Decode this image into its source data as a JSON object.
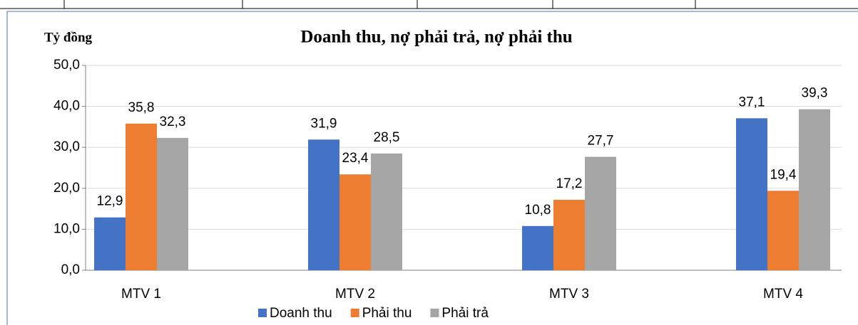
{
  "chart_data": {
    "type": "bar",
    "title": "Doanh thu, nợ phải trả, nợ phải thu",
    "y_label": "Tỷ đồng",
    "categories": [
      "MTV 1",
      "MTV 2",
      "MTV 3",
      "MTV 4"
    ],
    "series": [
      {
        "name": "Doanh thu",
        "color": "#4472c4",
        "values": [
          12.9,
          31.9,
          10.8,
          37.1
        ],
        "value_labels": [
          "12,9",
          "31,9",
          "10,8",
          "37,1"
        ]
      },
      {
        "name": "Phải thu",
        "color": "#ed7d31",
        "values": [
          35.8,
          23.4,
          17.2,
          19.4
        ],
        "value_labels": [
          "35,8",
          "23,4",
          "17,2",
          "19,4"
        ]
      },
      {
        "name": "Phải trả",
        "color": "#a5a5a5",
        "values": [
          32.3,
          28.5,
          27.7,
          39.3
        ],
        "value_labels": [
          "32,3",
          "28,5",
          "27,7",
          "39,3"
        ]
      }
    ],
    "ylim": [
      0,
      50
    ],
    "yticks": [
      {
        "value": 0,
        "label": "0,0"
      },
      {
        "value": 10,
        "label": "10,0"
      },
      {
        "value": 20,
        "label": "20,0"
      },
      {
        "value": 30,
        "label": "30,0"
      },
      {
        "value": 40,
        "label": "40,0"
      },
      {
        "value": 50,
        "label": "50,0"
      }
    ],
    "grid": true,
    "legend": "bottom"
  }
}
